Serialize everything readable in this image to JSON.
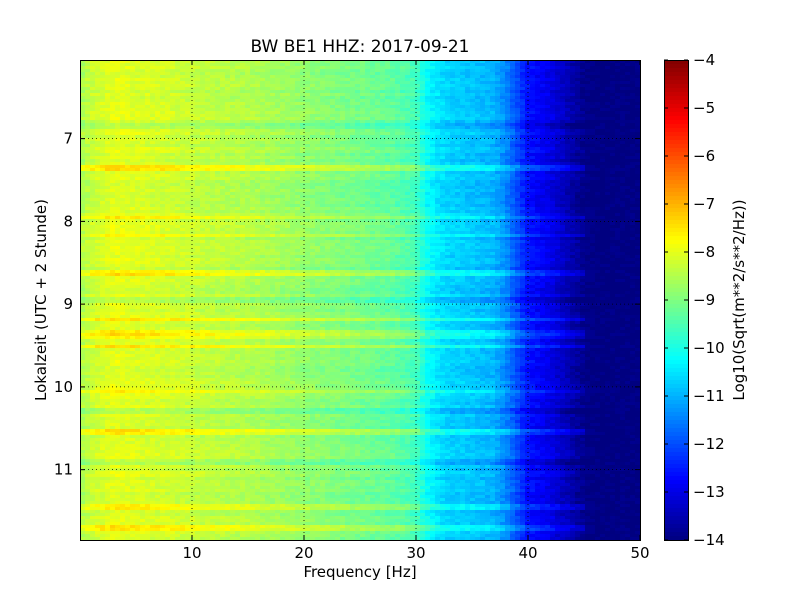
{
  "chart_data": {
    "type": "heatmap",
    "title": "BW BE1 HHZ: 2017-09-21",
    "xlabel": "Frequency [Hz]",
    "ylabel": "Lokalzeit (UTC + 2 Stunde)",
    "xlim": [
      0,
      50
    ],
    "ylim": [
      6.05,
      11.85
    ],
    "y_inverted": true,
    "x_ticks": [
      10,
      20,
      30,
      40,
      50
    ],
    "x_tick_labels": [
      "10",
      "20",
      "30",
      "40",
      "50"
    ],
    "y_ticks": [
      7,
      8,
      9,
      10,
      11
    ],
    "y_tick_labels": [
      "7",
      "8",
      "9",
      "10",
      "11"
    ],
    "grid": true,
    "colormap": "jet",
    "colorbar": {
      "label": "Log10(Sqrt(m**2/s**2/Hz))",
      "min": -14,
      "max": -4,
      "ticks": [
        -4,
        -5,
        -6,
        -7,
        -8,
        -9,
        -10,
        -11,
        -12,
        -13,
        -14
      ],
      "tick_labels": [
        "−4",
        "−5",
        "−6",
        "−7",
        "−8",
        "−9",
        "−10",
        "−11",
        "−12",
        "−13",
        "−14"
      ]
    },
    "spectrum_profile": {
      "frequency_hz": [
        0,
        1,
        3,
        5,
        8,
        10,
        12,
        15,
        20,
        25,
        28,
        30,
        31,
        32,
        33,
        35,
        37,
        38,
        39,
        40,
        42,
        44,
        45,
        46,
        50
      ],
      "level": [
        -8.6,
        -8.3,
        -8.0,
        -8.1,
        -8.2,
        -8.3,
        -8.4,
        -8.5,
        -8.8,
        -9.1,
        -9.3,
        -9.6,
        -10.2,
        -10.5,
        -10.7,
        -10.8,
        -11.0,
        -11.4,
        -12.0,
        -12.6,
        -13.0,
        -13.6,
        -13.9,
        -14.0,
        -14.0
      ]
    },
    "bright_bands_hours": [
      7.35,
      7.95,
      8.18,
      8.62,
      9.18,
      9.33,
      9.38,
      9.52,
      10.05,
      10.55,
      11.45,
      11.7
    ],
    "dark_bands_hours": [
      6.85,
      8.95,
      10.3,
      10.9
    ]
  }
}
